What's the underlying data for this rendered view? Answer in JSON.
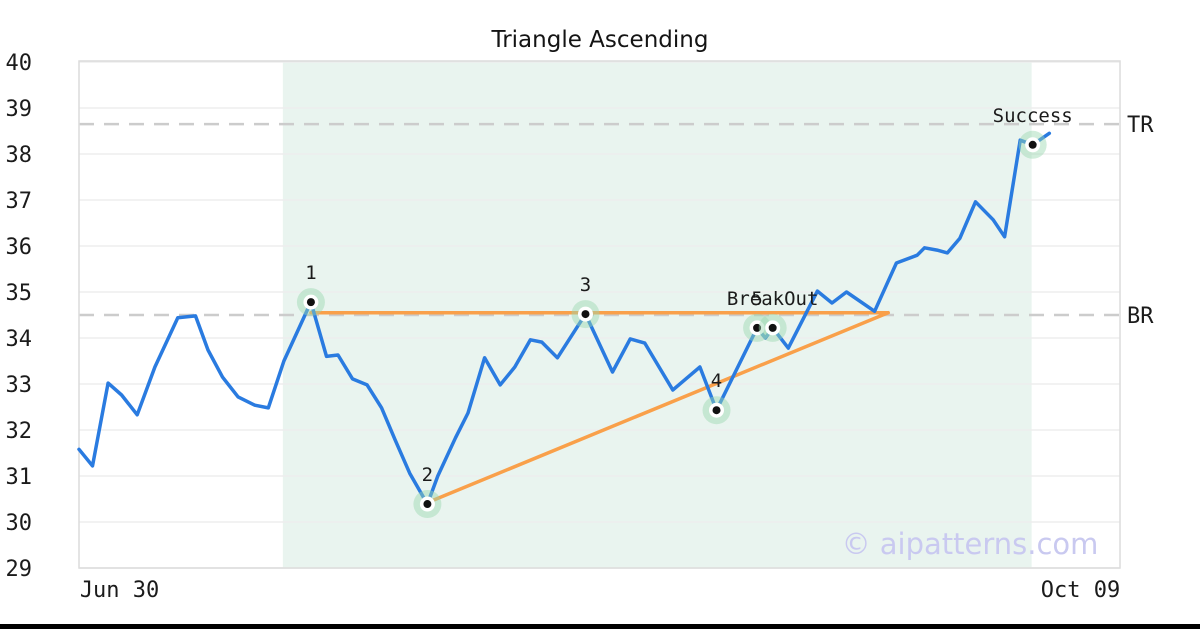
{
  "chart_data": {
    "type": "line",
    "title": "Triangle Ascending",
    "watermark": "© aipatterns.com",
    "y_axis": {
      "min": 29,
      "max": 40,
      "ticks": [
        40,
        39,
        38,
        37,
        36,
        35,
        34,
        33,
        32,
        31,
        30,
        29
      ]
    },
    "x_axis": {
      "ticks": [
        {
          "label": "Jun 30",
          "pos": 0.039
        },
        {
          "label": "Oct 09",
          "pos": 0.963
        }
      ]
    },
    "right_axis_ticks": [
      {
        "label": "TR",
        "value": 38.65
      },
      {
        "label": "BR",
        "value": 34.5
      }
    ],
    "pattern_region": {
      "start": 0.196,
      "end": 0.916
    },
    "trendlines": [
      {
        "name": "resistance-top",
        "from": [
          0.223,
          34.55
        ],
        "to": [
          0.778,
          34.55
        ]
      },
      {
        "name": "support-bottom",
        "from": [
          0.335,
          30.42
        ],
        "to": [
          0.778,
          34.55
        ]
      }
    ],
    "markers": [
      {
        "label": "1",
        "x": 0.223,
        "value": 34.78
      },
      {
        "label": "2",
        "x": 0.335,
        "value": 30.39
      },
      {
        "label": "3",
        "x": 0.487,
        "value": 34.52
      },
      {
        "label": "4",
        "x": 0.613,
        "value": 32.43
      },
      {
        "label": "5",
        "x": 0.652,
        "value": 34.22
      },
      {
        "label": "BreakOut",
        "x": 0.667,
        "value": 34.22
      },
      {
        "label": "Success",
        "x": 0.917,
        "value": 38.2
      }
    ],
    "series": [
      {
        "name": "price",
        "points": [
          [
            0.0,
            31.58
          ],
          [
            0.013,
            31.22
          ],
          [
            0.028,
            33.02
          ],
          [
            0.041,
            32.76
          ],
          [
            0.056,
            32.33
          ],
          [
            0.073,
            33.37
          ],
          [
            0.095,
            34.44
          ],
          [
            0.112,
            34.48
          ],
          [
            0.124,
            33.74
          ],
          [
            0.138,
            33.15
          ],
          [
            0.153,
            32.72
          ],
          [
            0.169,
            32.54
          ],
          [
            0.182,
            32.48
          ],
          [
            0.197,
            33.5
          ],
          [
            0.223,
            34.78
          ],
          [
            0.238,
            33.6
          ],
          [
            0.249,
            33.63
          ],
          [
            0.263,
            33.11
          ],
          [
            0.277,
            32.98
          ],
          [
            0.291,
            32.48
          ],
          [
            0.304,
            31.78
          ],
          [
            0.318,
            31.06
          ],
          [
            0.335,
            30.39
          ],
          [
            0.345,
            31.0
          ],
          [
            0.362,
            31.83
          ],
          [
            0.374,
            32.37
          ],
          [
            0.39,
            33.57
          ],
          [
            0.405,
            32.98
          ],
          [
            0.419,
            33.37
          ],
          [
            0.434,
            33.96
          ],
          [
            0.445,
            33.91
          ],
          [
            0.46,
            33.57
          ],
          [
            0.487,
            34.52
          ],
          [
            0.513,
            33.26
          ],
          [
            0.53,
            33.98
          ],
          [
            0.544,
            33.89
          ],
          [
            0.571,
            32.87
          ],
          [
            0.597,
            33.37
          ],
          [
            0.613,
            32.43
          ],
          [
            0.652,
            34.22
          ],
          [
            0.66,
            34.0
          ],
          [
            0.667,
            34.22
          ],
          [
            0.682,
            33.78
          ],
          [
            0.71,
            35.02
          ],
          [
            0.724,
            34.76
          ],
          [
            0.738,
            35.0
          ],
          [
            0.765,
            34.58
          ],
          [
            0.786,
            35.63
          ],
          [
            0.806,
            35.8
          ],
          [
            0.813,
            35.96
          ],
          [
            0.825,
            35.91
          ],
          [
            0.835,
            35.85
          ],
          [
            0.847,
            36.17
          ],
          [
            0.862,
            36.96
          ],
          [
            0.879,
            36.57
          ],
          [
            0.89,
            36.2
          ],
          [
            0.905,
            38.3
          ],
          [
            0.917,
            38.2
          ],
          [
            0.933,
            38.45
          ]
        ]
      }
    ],
    "colors": {
      "line": "#2a7be0",
      "trendline": "#f9a04a",
      "region": "#e9f4ef",
      "grid": "#ededed",
      "frame": "#dcdcdc",
      "dashed": "#cccccc",
      "marker_halo": "#9ad6b0",
      "marker_inner": "#ffffff",
      "marker_dot": "#111111",
      "text": "#1b1b1b",
      "watermark": "#c9c9f0"
    }
  }
}
